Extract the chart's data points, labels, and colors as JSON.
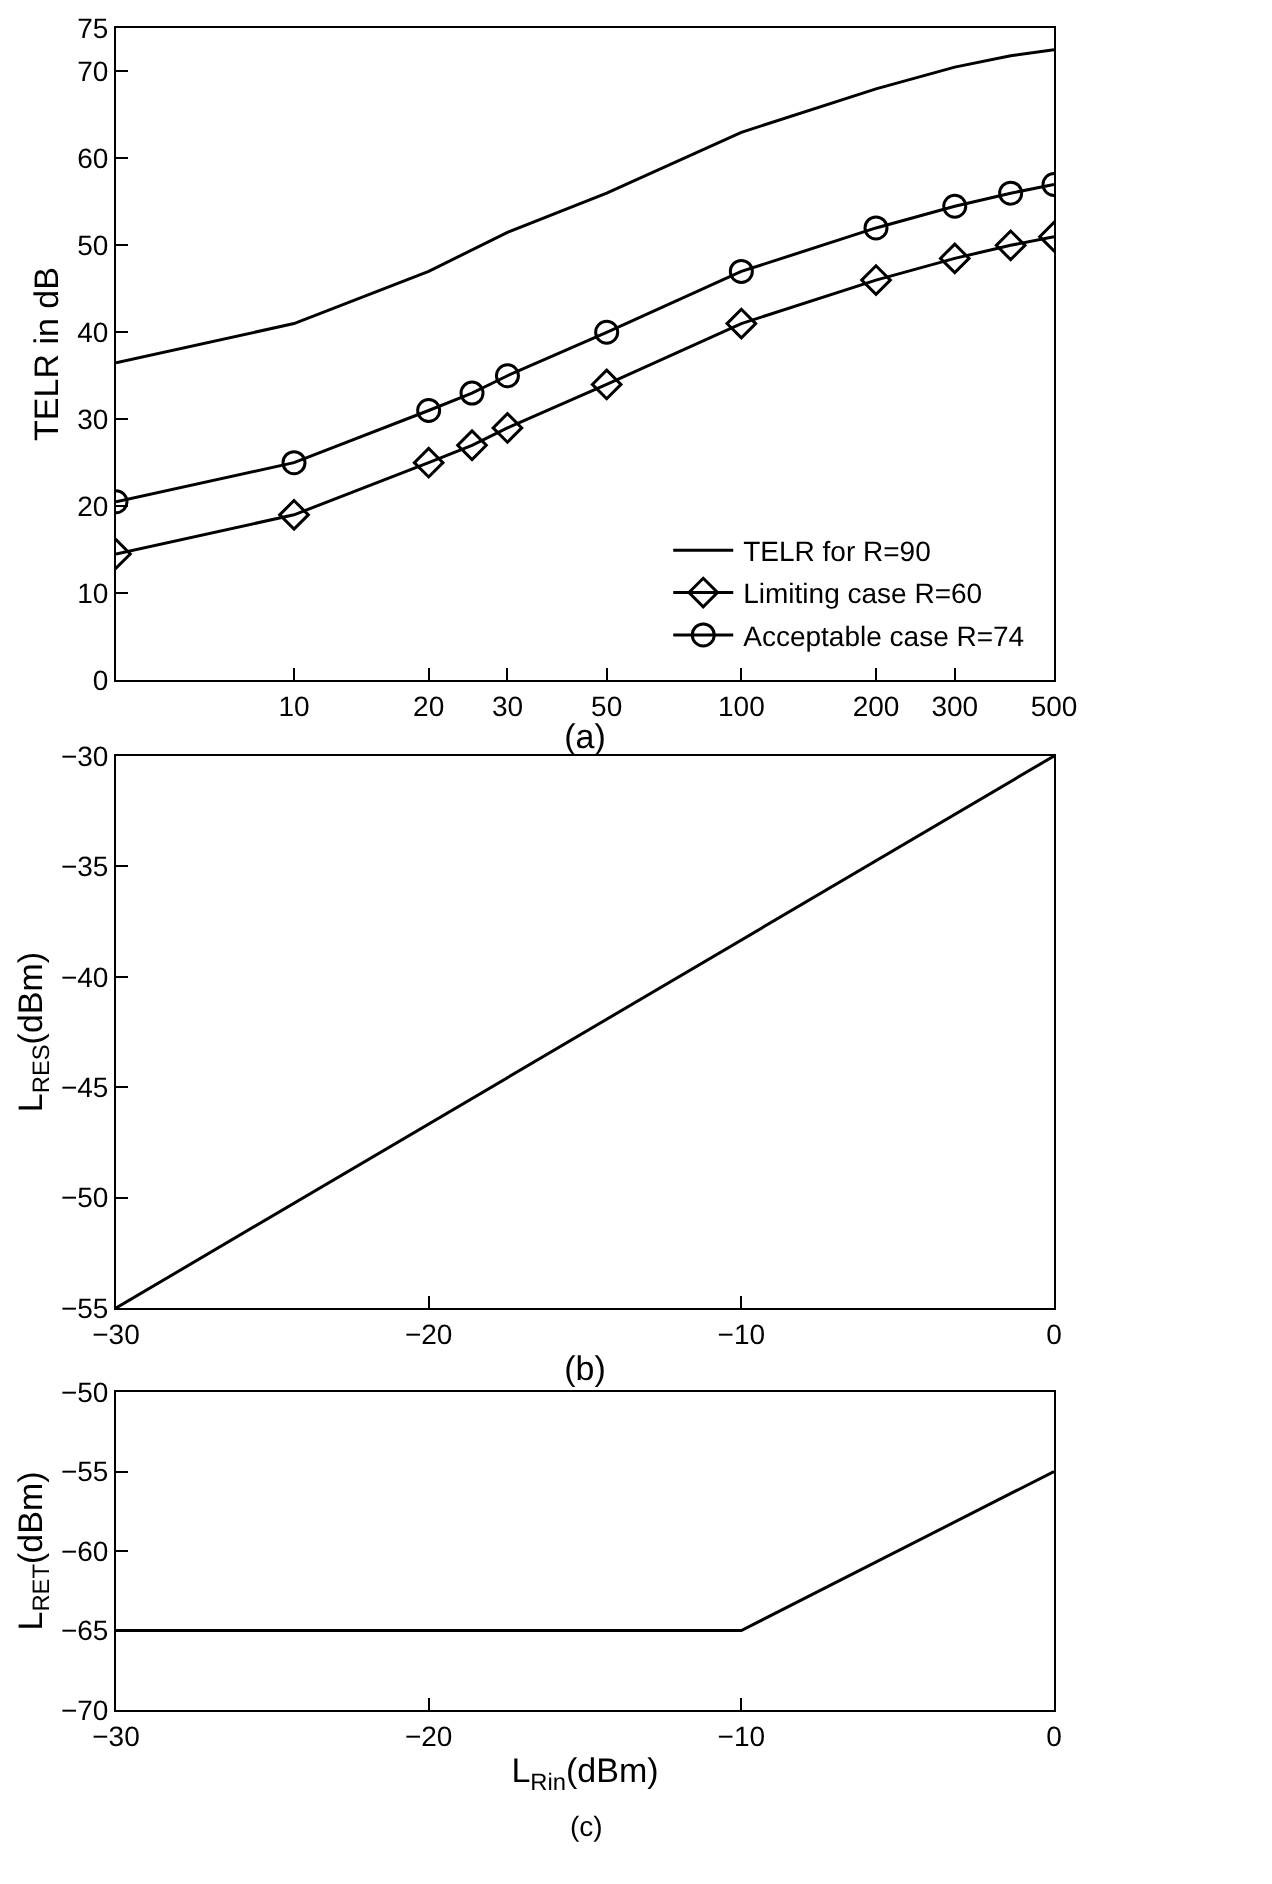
{
  "chart_data": [
    {
      "type": "line",
      "xlabel": "(a)",
      "ylabel": "TELR in dB",
      "log": "x",
      "xlim": [
        4,
        500
      ],
      "xticks": [
        10,
        20,
        30,
        50,
        100,
        200,
        300,
        500
      ],
      "ylim": [
        0,
        75
      ],
      "yticks": [
        0,
        10,
        20,
        30,
        40,
        50,
        60,
        70,
        75
      ],
      "grid": false,
      "legend": "bottom right",
      "line_style": "solid",
      "series": [
        {
          "name": "TELR for R=90",
          "color": "#000000",
          "marker": "none",
          "x": [
            4,
            10,
            20,
            30,
            50,
            100,
            200,
            300,
            400,
            500
          ],
          "values": [
            36.5,
            41,
            47,
            51.5,
            56,
            63,
            68,
            70.5,
            71.8,
            72.5
          ]
        },
        {
          "name": "Limiting case R=60",
          "color": "#000000",
          "marker": "diamond",
          "x": [
            4,
            10,
            20,
            25,
            30,
            50,
            100,
            200,
            300,
            400,
            500
          ],
          "values": [
            14.5,
            19,
            25,
            27,
            29,
            34,
            41,
            46,
            48.5,
            50,
            51
          ]
        },
        {
          "name": "Acceptable case R=74",
          "color": "#000000",
          "marker": "circle",
          "x": [
            4,
            10,
            20,
            25,
            30,
            50,
            100,
            200,
            300,
            400,
            500
          ],
          "values": [
            20.5,
            25,
            31,
            33,
            35,
            40,
            47,
            52,
            54.5,
            56,
            57
          ]
        }
      ]
    },
    {
      "type": "line",
      "xlabel": "(b)",
      "ylabel": "L$_{RES}$(dBm)",
      "xlim": [
        -30,
        0
      ],
      "xticks": [
        {
          "value": -30,
          "label": "−30"
        },
        {
          "value": -20,
          "label": "−20"
        },
        {
          "value": -10,
          "label": "−10"
        },
        0
      ],
      "ylim": [
        -55,
        -30
      ],
      "yticks": [
        {
          "value": -55,
          "label": "−55"
        },
        {
          "value": -50,
          "label": "−50"
        },
        {
          "value": -45,
          "label": "−45"
        },
        {
          "value": -40,
          "label": "−40"
        },
        {
          "value": -35,
          "label": "−35"
        },
        {
          "value": -30,
          "label": "−30"
        }
      ],
      "grid": false,
      "legend": false,
      "line_style": "solid",
      "marker": "none",
      "series": [
        {
          "color": "#000000",
          "x": [
            -30,
            0
          ],
          "values": [
            -55,
            -30
          ]
        }
      ]
    },
    {
      "type": "line",
      "xlabel": "L$_{Rin}$(dBm)",
      "ylabel": "L$_{RET}$(dBm)",
      "annotations": [
        "(c)"
      ],
      "xlim": [
        -30,
        0
      ],
      "xticks": [
        {
          "value": -30,
          "label": "−30"
        },
        {
          "value": -20,
          "label": "−20"
        },
        {
          "value": -10,
          "label": "−10"
        },
        0
      ],
      "ylim": [
        -70,
        -50
      ],
      "yticks": [
        {
          "value": -70,
          "label": "−70"
        },
        {
          "value": -65,
          "label": "−65"
        },
        {
          "value": -60,
          "label": "−60"
        },
        {
          "value": -55,
          "label": "−55"
        },
        {
          "value": -50,
          "label": "−50"
        }
      ],
      "grid": false,
      "legend": false,
      "line_style": "solid",
      "marker": "none",
      "series": [
        {
          "color": "#000000",
          "x": [
            -30,
            -10,
            0
          ],
          "values": [
            -65,
            -65,
            -55
          ]
        }
      ]
    }
  ]
}
